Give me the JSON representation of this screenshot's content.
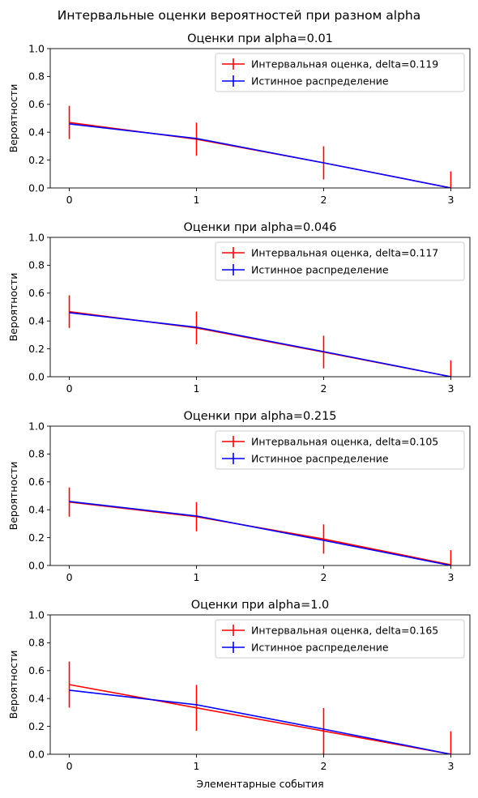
{
  "figure": {
    "suptitle": "Интервальные оценки вероятностей при разном alpha"
  },
  "colors": {
    "estimate": "#ff0000",
    "true": "#0000ff"
  },
  "chart_data": [
    {
      "type": "line",
      "title": "Оценки при alpha=0.01",
      "xlabel": "",
      "ylabel": "Вероятности",
      "x": [
        0,
        1,
        2,
        3
      ],
      "xticks": [
        "0",
        "1",
        "2",
        "3"
      ],
      "yticks": [
        "0.0",
        "0.2",
        "0.4",
        "0.6",
        "0.8",
        "1.0"
      ],
      "xlim": [
        -0.15,
        3.15
      ],
      "ylim": [
        0,
        1
      ],
      "legend_position": "upper right",
      "series": [
        {
          "name": "Интервальная оценка, delta=0.119",
          "color": "#ff0000",
          "values": [
            0.47,
            0.35,
            0.18,
            0.0
          ],
          "yerr": 0.119
        },
        {
          "name": "Истинное распределение",
          "color": "#0000ff",
          "values": [
            0.46,
            0.355,
            0.18,
            0.0
          ]
        }
      ]
    },
    {
      "type": "line",
      "title": "Оценки при alpha=0.046",
      "xlabel": "",
      "ylabel": "Вероятности",
      "x": [
        0,
        1,
        2,
        3
      ],
      "xticks": [
        "0",
        "1",
        "2",
        "3"
      ],
      "yticks": [
        "0.0",
        "0.2",
        "0.4",
        "0.6",
        "0.8",
        "1.0"
      ],
      "xlim": [
        -0.15,
        3.15
      ],
      "ylim": [
        0,
        1
      ],
      "legend_position": "upper right",
      "series": [
        {
          "name": "Интервальная оценка, delta=0.117",
          "color": "#ff0000",
          "values": [
            0.467,
            0.35,
            0.177,
            0.0
          ],
          "yerr": 0.117
        },
        {
          "name": "Истинное распределение",
          "color": "#0000ff",
          "values": [
            0.46,
            0.355,
            0.18,
            0.0
          ]
        }
      ]
    },
    {
      "type": "line",
      "title": "Оценки при alpha=0.215",
      "xlabel": "",
      "ylabel": "Вероятности",
      "x": [
        0,
        1,
        2,
        3
      ],
      "xticks": [
        "0",
        "1",
        "2",
        "3"
      ],
      "yticks": [
        "0.0",
        "0.2",
        "0.4",
        "0.6",
        "0.8",
        "1.0"
      ],
      "xlim": [
        -0.15,
        3.15
      ],
      "ylim": [
        0,
        1
      ],
      "legend_position": "upper right",
      "series": [
        {
          "name": "Интервальная оценка, delta=0.105",
          "color": "#ff0000",
          "values": [
            0.455,
            0.35,
            0.19,
            0.005
          ],
          "yerr": 0.105
        },
        {
          "name": "Истинное распределение",
          "color": "#0000ff",
          "values": [
            0.46,
            0.355,
            0.18,
            0.0
          ]
        }
      ]
    },
    {
      "type": "line",
      "title": "Оценки при alpha=1.0",
      "xlabel": "Элементарные события",
      "ylabel": "Вероятности",
      "x": [
        0,
        1,
        2,
        3
      ],
      "xticks": [
        "0",
        "1",
        "2",
        "3"
      ],
      "yticks": [
        "0.0",
        "0.2",
        "0.4",
        "0.6",
        "0.8",
        "1.0"
      ],
      "xlim": [
        -0.15,
        3.15
      ],
      "ylim": [
        0,
        1
      ],
      "legend_position": "upper right",
      "series": [
        {
          "name": "Интервальная оценка, delta=0.165",
          "color": "#ff0000",
          "values": [
            0.5,
            0.333,
            0.167,
            0.0
          ],
          "yerr": 0.165
        },
        {
          "name": "Истинное распределение",
          "color": "#0000ff",
          "values": [
            0.46,
            0.355,
            0.18,
            0.0
          ]
        }
      ]
    }
  ]
}
